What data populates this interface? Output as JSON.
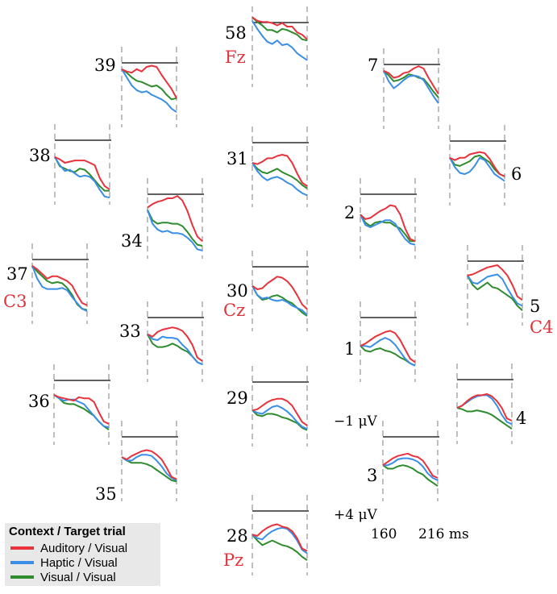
{
  "colors": {
    "auditory": "#e8323c",
    "haptic": "#3a8ee6",
    "visual": "#2e8b2e",
    "electrode_red": "#e0323a",
    "dashed": "#aaaaaa",
    "baseline": "#000000",
    "legend_bg": "#e8e8e8"
  },
  "legend": {
    "title": "Context / Target trial",
    "items": [
      {
        "label": "Auditory / Visual",
        "color": "#e8323c"
      },
      {
        "label": "Haptic / Visual",
        "color": "#3a8ee6"
      },
      {
        "label": "Visual / Visual",
        "color": "#2e8b2e"
      }
    ]
  },
  "scale": {
    "top": "−1 μV",
    "bottom": "+4 μV",
    "time_start": "160",
    "time_end": "216 ms"
  },
  "chart_data": {
    "type": "line",
    "xlabel": "",
    "ylabel": "",
    "x_range_ms": [
      160,
      216
    ],
    "y_range_uV": [
      -1,
      4
    ],
    "y_inverted": true,
    "series_names": [
      "Auditory / Visual",
      "Haptic / Visual",
      "Visual / Visual"
    ],
    "channels": [
      {
        "label": "58",
        "region": "Fz",
        "auditory": [
          -0.9,
          -0.6,
          -0.5,
          -0.5,
          -0.4,
          -0.2,
          -0.4,
          -0.1,
          -0.1,
          0.4,
          0.6,
          1.0
        ],
        "haptic": [
          -0.6,
          0.1,
          0.7,
          1.2,
          1.4,
          1.1,
          1.5,
          1.4,
          1.7,
          2.2,
          2.5,
          2.8
        ],
        "visual": [
          -0.9,
          -0.5,
          -0.2,
          0.2,
          0.2,
          0.4,
          0.1,
          0.2,
          0.4,
          0.6,
          1.0,
          1.1
        ]
      },
      {
        "label": "39",
        "region": "",
        "auditory": [
          0.1,
          0.3,
          0.4,
          0.1,
          0.3,
          -0.1,
          -0.2,
          -0.1,
          0.6,
          1.2,
          1.8,
          2.6
        ],
        "haptic": [
          0.1,
          0.8,
          1.5,
          1.9,
          2.1,
          2.0,
          2.3,
          2.5,
          2.7,
          3.0,
          3.5,
          3.8
        ],
        "visual": [
          0.1,
          0.4,
          0.8,
          1.1,
          1.2,
          1.4,
          1.6,
          1.5,
          1.8,
          2.3,
          2.7,
          2.6
        ]
      },
      {
        "label": "7",
        "region": "",
        "auditory": [
          0.1,
          0.3,
          0.7,
          0.6,
          0.3,
          0.2,
          -0.1,
          -0.3,
          -0.1,
          0.7,
          1.4,
          2.1
        ],
        "haptic": [
          0.1,
          1.0,
          1.6,
          1.3,
          0.9,
          0.6,
          0.5,
          0.6,
          0.9,
          1.6,
          2.3,
          2.9
        ],
        "visual": [
          0.1,
          0.5,
          1.0,
          0.9,
          0.7,
          0.4,
          0.5,
          0.7,
          0.8,
          1.3,
          1.9,
          2.4
        ]
      },
      {
        "label": "38",
        "region": "",
        "auditory": [
          1.0,
          1.2,
          1.5,
          1.4,
          1.3,
          1.3,
          1.3,
          1.5,
          1.7,
          2.8,
          3.5,
          3.8
        ],
        "haptic": [
          1.0,
          1.7,
          2.2,
          2.1,
          2.4,
          2.7,
          2.6,
          2.7,
          3.1,
          3.8,
          4.4,
          4.5
        ],
        "visual": [
          1.0,
          1.8,
          2.0,
          2.2,
          2.3,
          2.0,
          2.1,
          2.5,
          3.0,
          3.5,
          3.9,
          3.9
        ]
      },
      {
        "label": "31",
        "region": "",
        "auditory": [
          1.3,
          1.4,
          1.2,
          0.9,
          0.9,
          0.7,
          0.6,
          0.7,
          1.3,
          2.2,
          3.0,
          3.3
        ],
        "haptic": [
          1.3,
          2.0,
          2.5,
          2.8,
          2.6,
          2.5,
          2.7,
          3.0,
          3.2,
          3.6,
          3.9,
          4.1
        ],
        "visual": [
          1.3,
          1.8,
          2.1,
          2.2,
          2.0,
          1.8,
          2.1,
          2.3,
          2.5,
          2.8,
          3.2,
          3.5
        ]
      },
      {
        "label": "6",
        "region": "",
        "auditory": [
          1.0,
          1.2,
          1.0,
          1.0,
          0.7,
          0.6,
          0.5,
          0.6,
          1.1,
          1.8,
          2.4,
          2.6
        ],
        "haptic": [
          1.0,
          1.8,
          2.3,
          2.4,
          2.2,
          1.7,
          1.0,
          1.2,
          1.8,
          2.4,
          2.7,
          3.0
        ],
        "visual": [
          1.0,
          1.6,
          1.7,
          1.5,
          1.3,
          0.9,
          0.8,
          1.1,
          1.4,
          2.0,
          2.4,
          2.6
        ]
      },
      {
        "label": "34",
        "region": "",
        "auditory": [
          0.7,
          0.4,
          0.2,
          0.1,
          -0.1,
          -0.1,
          -0.3,
          0.1,
          1.0,
          2.2,
          3.2,
          3.6
        ],
        "haptic": [
          0.9,
          2.1,
          2.6,
          2.8,
          2.7,
          2.9,
          2.9,
          3.0,
          3.3,
          3.7,
          4.3,
          4.4
        ],
        "visual": [
          0.9,
          1.8,
          2.1,
          2.0,
          2.0,
          2.1,
          2.1,
          2.3,
          2.8,
          3.4,
          3.9,
          4.0
        ]
      },
      {
        "label": "2",
        "region": "",
        "auditory": [
          1.3,
          1.7,
          1.6,
          1.3,
          1.0,
          0.8,
          0.5,
          0.6,
          1.3,
          2.5,
          3.4,
          3.6
        ],
        "haptic": [
          1.3,
          2.2,
          2.4,
          2.2,
          2.0,
          1.8,
          1.8,
          2.1,
          2.8,
          3.4,
          3.8,
          3.9
        ],
        "visual": [
          1.3,
          2.0,
          2.3,
          2.0,
          1.9,
          2.0,
          2.0,
          2.3,
          2.5,
          3.0,
          3.6,
          3.6
        ]
      },
      {
        "label": "37",
        "region": "C3",
        "auditory": [
          0.1,
          0.4,
          0.8,
          1.2,
          1.0,
          1.0,
          1.2,
          1.4,
          1.8,
          2.6,
          3.3,
          3.5
        ],
        "haptic": [
          0.1,
          1.2,
          1.9,
          2.1,
          2.1,
          2.1,
          2.0,
          2.2,
          2.8,
          3.3,
          3.8,
          4.0
        ],
        "visual": [
          0.1,
          0.6,
          1.0,
          1.4,
          1.6,
          1.5,
          1.6,
          2.0,
          2.6,
          3.4,
          3.8,
          3.9
        ]
      },
      {
        "label": "30",
        "region": "Cz",
        "auditory": [
          1.2,
          1.5,
          1.4,
          1.0,
          0.7,
          0.4,
          0.5,
          0.8,
          1.3,
          2.0,
          2.8,
          3.2
        ],
        "haptic": [
          1.2,
          2.0,
          2.3,
          2.2,
          2.4,
          2.5,
          2.4,
          2.6,
          2.9,
          3.1,
          3.3,
          3.7
        ],
        "visual": [
          1.2,
          2.0,
          2.4,
          2.3,
          2.1,
          2.0,
          2.2,
          2.5,
          2.7,
          3.1,
          3.5,
          3.8
        ]
      },
      {
        "label": "5",
        "region": "C4",
        "auditory": [
          0.8,
          0.7,
          0.5,
          0.3,
          0.1,
          0.0,
          -0.1,
          0.3,
          0.8,
          1.6,
          2.6,
          2.9
        ],
        "haptic": [
          0.8,
          1.4,
          1.5,
          1.2,
          0.9,
          0.8,
          0.7,
          1.1,
          1.9,
          2.6,
          3.2,
          3.4
        ],
        "visual": [
          0.8,
          1.6,
          2.0,
          1.7,
          1.4,
          1.8,
          1.9,
          2.2,
          2.5,
          2.8,
          3.4,
          3.8
        ]
      },
      {
        "label": "33",
        "region": "",
        "auditory": [
          1.0,
          1.2,
          0.8,
          0.6,
          0.5,
          0.4,
          0.5,
          0.7,
          1.2,
          1.9,
          3.0,
          3.3
        ],
        "haptic": [
          1.0,
          1.4,
          1.5,
          1.2,
          1.3,
          1.3,
          1.4,
          1.9,
          2.3,
          2.9,
          3.4,
          3.6
        ],
        "visual": [
          1.0,
          1.8,
          2.1,
          2.1,
          2.0,
          1.8,
          2.0,
          2.3,
          2.5,
          2.9,
          3.4,
          3.6
        ]
      },
      {
        "label": "1",
        "region": "",
        "auditory": [
          2.0,
          1.8,
          1.5,
          1.2,
          1.0,
          0.8,
          0.7,
          0.9,
          1.5,
          2.3,
          3.1,
          3.4
        ],
        "haptic": [
          2.0,
          2.0,
          2.1,
          1.8,
          1.5,
          1.3,
          1.5,
          1.9,
          2.5,
          3.1,
          3.5,
          3.7
        ],
        "visual": [
          2.0,
          2.4,
          2.5,
          2.3,
          2.2,
          2.4,
          2.5,
          2.7,
          3.0,
          3.2,
          3.5,
          3.7
        ]
      },
      {
        "label": "36",
        "region": "",
        "auditory": [
          0.8,
          1.0,
          1.1,
          1.2,
          1.3,
          1.0,
          1.1,
          1.1,
          1.4,
          2.3,
          3.1,
          3.3
        ],
        "haptic": [
          0.8,
          1.1,
          1.3,
          1.2,
          1.2,
          1.4,
          1.6,
          2.1,
          2.6,
          3.1,
          3.5,
          3.6
        ],
        "visual": [
          0.8,
          1.1,
          1.5,
          1.6,
          1.6,
          1.8,
          2.0,
          2.3,
          2.6,
          3.1,
          3.5,
          3.8
        ]
      },
      {
        "label": "29",
        "region": "",
        "auditory": [
          2.0,
          1.9,
          1.6,
          1.3,
          1.1,
          1.0,
          1.0,
          1.2,
          1.6,
          2.3,
          3.0,
          3.3
        ],
        "haptic": [
          2.0,
          2.2,
          2.3,
          2.0,
          1.7,
          1.6,
          1.8,
          2.1,
          2.5,
          3.0,
          3.4,
          3.6
        ],
        "visual": [
          2.0,
          2.4,
          2.5,
          2.3,
          2.3,
          2.4,
          2.6,
          2.7,
          2.9,
          3.1,
          3.5,
          3.7
        ]
      },
      {
        "label": "4",
        "region": "",
        "auditory": [
          2.0,
          1.8,
          1.4,
          1.1,
          0.9,
          0.9,
          0.8,
          1.0,
          1.4,
          2.0,
          2.9,
          3.1
        ],
        "haptic": [
          2.0,
          1.8,
          1.5,
          1.2,
          1.0,
          0.9,
          0.9,
          1.2,
          1.8,
          2.6,
          3.2,
          3.4
        ],
        "visual": [
          2.0,
          2.1,
          2.3,
          2.3,
          2.2,
          2.3,
          2.4,
          2.6,
          2.9,
          3.2,
          3.5,
          3.8
        ]
      },
      {
        "label": "35",
        "region": "",
        "auditory": [
          1.3,
          1.5,
          1.2,
          1.0,
          0.8,
          0.7,
          0.8,
          1.1,
          1.5,
          2.2,
          3.0,
          3.2
        ],
        "haptic": [
          1.3,
          1.6,
          1.6,
          1.3,
          1.1,
          1.1,
          1.2,
          1.6,
          2.1,
          2.7,
          3.1,
          3.3
        ],
        "visual": [
          1.3,
          1.6,
          1.8,
          1.8,
          1.8,
          1.9,
          2.1,
          2.4,
          2.7,
          3.0,
          3.3,
          3.4
        ]
      },
      {
        "label": "3",
        "region": "",
        "auditory": [
          2.0,
          1.7,
          1.4,
          1.2,
          1.1,
          1.0,
          1.2,
          1.3,
          1.6,
          2.2,
          2.9,
          3.1
        ],
        "haptic": [
          2.0,
          2.0,
          1.8,
          1.5,
          1.4,
          1.4,
          1.5,
          1.7,
          2.1,
          2.7,
          3.1,
          3.3
        ],
        "visual": [
          2.0,
          2.3,
          2.3,
          2.1,
          2.0,
          2.1,
          2.3,
          2.6,
          2.8,
          3.2,
          3.5,
          3.8
        ]
      },
      {
        "label": "28",
        "region": "Pz",
        "auditory": [
          1.6,
          1.7,
          1.3,
          1.0,
          0.8,
          0.7,
          0.9,
          1.0,
          1.3,
          1.9,
          2.8,
          3.0
        ],
        "haptic": [
          1.6,
          1.9,
          2.0,
          1.6,
          1.3,
          1.1,
          1.0,
          1.1,
          1.5,
          2.1,
          2.9,
          3.2
        ],
        "visual": [
          1.6,
          2.1,
          2.5,
          2.3,
          2.1,
          2.3,
          2.5,
          2.6,
          2.8,
          3.1,
          3.5,
          3.8
        ]
      }
    ]
  }
}
